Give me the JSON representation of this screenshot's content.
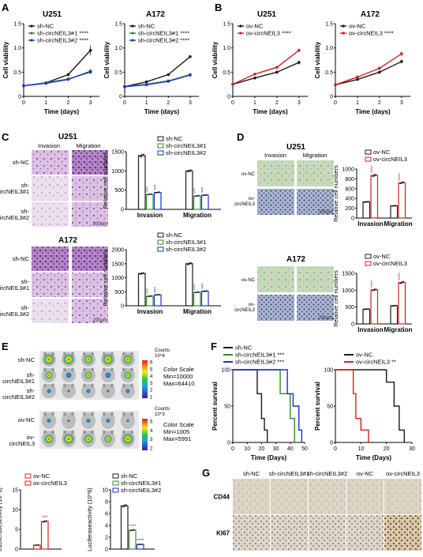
{
  "panels": {
    "A": {
      "letter": "A",
      "charts": [
        {
          "title": "U251",
          "ylabel": "Cell viability",
          "xlabel": "Time (days)",
          "legend": [
            "sh-NC",
            "sh-circNEIL3#1",
            "sh-circNEIL3#2"
          ],
          "stars": [
            "",
            "****",
            "****"
          ]
        },
        {
          "title": "A172",
          "ylabel": "Cell viability",
          "xlabel": "Time (days)",
          "legend": [
            "sh-NC",
            "sh-circNEIL3#1",
            "sh-circNEIL3#2"
          ],
          "stars": [
            "",
            "****",
            "****"
          ]
        }
      ]
    },
    "B": {
      "letter": "B",
      "charts": [
        {
          "title": "U251",
          "ylabel": "Cell viability",
          "xlabel": "Time (days)",
          "legend": [
            "ov-NC",
            "ov-circNEIL3"
          ],
          "stars": [
            "",
            "****"
          ]
        },
        {
          "title": "A172",
          "ylabel": "Cell viability",
          "xlabel": "Time (days)",
          "legend": [
            "ov-NC",
            "ov-circNEIL3"
          ],
          "stars": [
            "",
            "****"
          ]
        }
      ]
    },
    "C": {
      "letter": "C",
      "blocks": [
        {
          "title": "U251",
          "col_labels": [
            "Invasion",
            "Migration"
          ],
          "row_labels": [
            "sh-NC",
            "sh-\ncircNEIL3#1",
            "sh-\ncircNEIL3#2"
          ],
          "legend": [
            "sh-NC",
            "sh-circNEIL3#1",
            "sh-circNEIL3#2"
          ],
          "ylabel": "Relative cell numbers",
          "scale": "200μm"
        },
        {
          "title": "A172",
          "col_labels": [
            "Invasion",
            "Migration"
          ],
          "row_labels": [
            "sh-NC",
            "sh-\ncircNEIL3#1",
            "sh-\ncircNEIL3#2"
          ],
          "legend": [
            "sh-NC",
            "sh-circNEIL3#1",
            "sh-circNEIL3#2"
          ],
          "ylabel": "Relative cell numbers",
          "scale": "200μm"
        }
      ]
    },
    "D": {
      "letter": "D",
      "blocks": [
        {
          "title": "U251",
          "col_labels": [
            "Invasion",
            "Migration"
          ],
          "row_labels": [
            "ov-NC",
            "ov-\ncircNEIL3"
          ],
          "legend": [
            "ov-NC",
            "ov-circNEIL3"
          ],
          "ylabel": "Relative cell numbers",
          "scale": "200μm"
        },
        {
          "title": "A172",
          "col_labels": [
            "Invasion",
            "Migration"
          ],
          "row_labels": [
            "ov-NC",
            "ov-\ncircNEIL3"
          ],
          "legend": [
            "ov-NC",
            "ov-circNEIL3"
          ],
          "ylabel": "Relative cell numbers",
          "scale": "200μm"
        }
      ]
    },
    "E": {
      "letter": "E",
      "imaging": [
        {
          "row_labels": [
            "sh-NC",
            "sh-\ncircNEIL3#1",
            "sh-\ncircNEIL3#2"
          ],
          "counts_label": "Counts",
          "exp": "10^4",
          "ticks": [
            "6",
            "5",
            "4",
            "3",
            "2",
            "1"
          ],
          "scale_text": [
            "Color Scale",
            "Min=10000",
            "Max=64410"
          ]
        },
        {
          "row_labels": [
            "ov-NC",
            "ov-\ncircNEIL3"
          ],
          "counts_label": "Counts",
          "exp": "10^3",
          "ticks": [
            "5",
            "4",
            "3",
            "2"
          ],
          "scale_text": [
            "Color Scale",
            "Min=1005",
            "Max=5991"
          ]
        }
      ],
      "bars": [
        {
          "legend": [
            "ov-NC",
            "ov-circNEIL3"
          ],
          "ylabel": "Luciferaseactivity (10^6)"
        },
        {
          "legend": [
            "sh-NC",
            "sh-circNEIL3#1",
            "sh-circNEIL3#2"
          ],
          "ylabel": "Luciferaseactivity (10^6)"
        }
      ]
    },
    "F": {
      "letter": "F",
      "charts": [
        {
          "ylabel": "Percent survival",
          "xlabel": "Time (Days)",
          "legend": [
            "sh-NC",
            "sh-circNEIL3#1 ***",
            "sh-circNEIL3#2 ***"
          ]
        },
        {
          "ylabel": "Percent survival",
          "xlabel": "Time (Days)",
          "legend": [
            "ov-NC",
            "ov-circNEIL3 **"
          ]
        }
      ]
    },
    "G": {
      "letter": "G",
      "col_labels": [
        "sh-NC",
        "sh-circNEIL3#1",
        "sh-circNEIL3#2",
        "ov-NC",
        "ov-circNEIL3"
      ],
      "row_labels": [
        "CD44",
        "KI67"
      ]
    }
  },
  "colors": {
    "black": "#1a1a1a",
    "green": "#2e8b2e",
    "blue": "#1f2fc8",
    "red": "#d42020",
    "he_pink": "#d7b6dc",
    "he_purple": "#7b3f9a",
    "ihc_bg": "#d9cfc0",
    "ihc_brown": "#8a5a2b"
  },
  "chart_data": [
    {
      "id": "A-U251",
      "type": "line",
      "title": "U251",
      "xlabel": "Time (days)",
      "ylabel": "Cell viability",
      "x": [
        0,
        1,
        2,
        3
      ],
      "xlim": [
        0,
        3.4
      ],
      "ylim": [
        0,
        1.5
      ],
      "xticks": [
        0,
        1,
        2,
        3
      ],
      "yticks": [
        0,
        0.5,
        1.0,
        1.5
      ],
      "series": [
        {
          "name": "sh-NC",
          "color": "#1a1a1a",
          "values": [
            0.22,
            0.28,
            0.45,
            0.95
          ],
          "err": [
            0.01,
            0.02,
            0.03,
            0.1
          ]
        },
        {
          "name": "sh-circNEIL3#1",
          "color": "#2e8b2e",
          "values": [
            0.22,
            0.28,
            0.36,
            0.5
          ],
          "err": [
            0.01,
            0.02,
            0.02,
            0.04
          ]
        },
        {
          "name": "sh-circNEIL3#2",
          "color": "#1f2fc8",
          "values": [
            0.22,
            0.27,
            0.35,
            0.52
          ],
          "err": [
            0.01,
            0.02,
            0.02,
            0.04
          ]
        }
      ]
    },
    {
      "id": "A-A172",
      "type": "line",
      "title": "A172",
      "xlabel": "Time (days)",
      "ylabel": "Cell viability",
      "x": [
        0,
        1,
        2,
        3
      ],
      "xlim": [
        0,
        3.4
      ],
      "ylim": [
        0,
        1.5
      ],
      "xticks": [
        0,
        1,
        2,
        3
      ],
      "yticks": [
        0,
        0.5,
        1.0,
        1.5
      ],
      "series": [
        {
          "name": "sh-NC",
          "color": "#1a1a1a",
          "values": [
            0.2,
            0.3,
            0.45,
            0.82
          ],
          "err": [
            0.01,
            0.02,
            0.02,
            0.03
          ]
        },
        {
          "name": "sh-circNEIL3#1",
          "color": "#2e8b2e",
          "values": [
            0.2,
            0.25,
            0.32,
            0.45
          ],
          "err": [
            0.01,
            0.01,
            0.02,
            0.03
          ]
        },
        {
          "name": "sh-circNEIL3#2",
          "color": "#1f2fc8",
          "values": [
            0.2,
            0.24,
            0.31,
            0.44
          ],
          "err": [
            0.01,
            0.01,
            0.02,
            0.03
          ]
        }
      ]
    },
    {
      "id": "B-U251",
      "type": "line",
      "title": "U251",
      "xlabel": "Time (days)",
      "ylabel": "Cell viability",
      "x": [
        0,
        1,
        2,
        3
      ],
      "xlim": [
        0,
        3.4
      ],
      "ylim": [
        0,
        1.5
      ],
      "xticks": [
        0,
        1,
        2,
        3
      ],
      "yticks": [
        0,
        0.5,
        1.0,
        1.5
      ],
      "series": [
        {
          "name": "ov-NC",
          "color": "#1a1a1a",
          "values": [
            0.25,
            0.38,
            0.5,
            0.7
          ],
          "err": [
            0.01,
            0.02,
            0.02,
            0.04
          ]
        },
        {
          "name": "ov-circNEIL3",
          "color": "#d42020",
          "values": [
            0.25,
            0.46,
            0.6,
            0.95
          ],
          "err": [
            0.01,
            0.02,
            0.02,
            0.04
          ]
        }
      ]
    },
    {
      "id": "B-A172",
      "type": "line",
      "title": "A172",
      "xlabel": "Time (days)",
      "ylabel": "Cell viability",
      "x": [
        0,
        1,
        2,
        3
      ],
      "xlim": [
        0,
        3.4
      ],
      "ylim": [
        0,
        1.5
      ],
      "xticks": [
        0,
        1,
        2,
        3
      ],
      "yticks": [
        0,
        0.5,
        1.0,
        1.5
      ],
      "series": [
        {
          "name": "ov-NC",
          "color": "#1a1a1a",
          "values": [
            0.24,
            0.35,
            0.5,
            0.72
          ],
          "err": [
            0.01,
            0.02,
            0.02,
            0.04
          ]
        },
        {
          "name": "ov-circNEIL3",
          "color": "#d42020",
          "values": [
            0.24,
            0.4,
            0.58,
            0.88
          ],
          "err": [
            0.01,
            0.02,
            0.03,
            0.05
          ]
        }
      ]
    },
    {
      "id": "C-U251",
      "type": "bar",
      "categories": [
        "Invasion",
        "Migration"
      ],
      "ylabel": "Relative cell numbers",
      "ylim": [
        0,
        1500
      ],
      "yticks": [
        0,
        500,
        1000,
        1500
      ],
      "stars": [
        "",
        "***",
        "***"
      ],
      "series": [
        {
          "name": "sh-NC",
          "color": "#1a1a1a",
          "values": [
            1400,
            1000
          ]
        },
        {
          "name": "sh-circNEIL3#1",
          "color": "#2e8b2e",
          "values": [
            390,
            350
          ]
        },
        {
          "name": "sh-circNEIL3#2",
          "color": "#1f2fc8",
          "values": [
            440,
            370
          ]
        }
      ]
    },
    {
      "id": "C-A172",
      "type": "bar",
      "categories": [
        "Invasion",
        "Migration"
      ],
      "ylabel": "Relative cell numbers",
      "ylim": [
        0,
        2000
      ],
      "yticks": [
        0,
        500,
        1000,
        1500,
        2000
      ],
      "stars": [
        "",
        "***",
        "***"
      ],
      "series": [
        {
          "name": "sh-NC",
          "color": "#1a1a1a",
          "values": [
            1150,
            1500
          ]
        },
        {
          "name": "sh-circNEIL3#1",
          "color": "#2e8b2e",
          "values": [
            340,
            480
          ]
        },
        {
          "name": "sh-circNEIL3#2",
          "color": "#1f2fc8",
          "values": [
            390,
            520
          ]
        }
      ]
    },
    {
      "id": "D-U251",
      "type": "bar",
      "categories": [
        "Invasion",
        "Migration"
      ],
      "ylabel": "Relative cell numbers",
      "ylim": [
        0,
        1000
      ],
      "yticks": [
        0,
        200,
        400,
        600,
        800,
        1000
      ],
      "stars": [
        "",
        "****"
      ],
      "series": [
        {
          "name": "ov-NC",
          "color": "#1a1a1a",
          "values": [
            330,
            250
          ]
        },
        {
          "name": "ov-circNEIL3",
          "color": "#d42020",
          "values": [
            870,
            720
          ]
        }
      ]
    },
    {
      "id": "D-A172",
      "type": "bar",
      "categories": [
        "Invasion",
        "Migration"
      ],
      "ylabel": "Relative cell numbers",
      "ylim": [
        0,
        1500
      ],
      "yticks": [
        0,
        500,
        1000,
        1500
      ],
      "stars": [
        "",
        "****"
      ],
      "series": [
        {
          "name": "ov-NC",
          "color": "#1a1a1a",
          "values": [
            440,
            540
          ]
        },
        {
          "name": "ov-circNEIL3",
          "color": "#d42020",
          "values": [
            1010,
            1230
          ]
        }
      ]
    },
    {
      "id": "E-ov",
      "type": "bar",
      "categories": [
        ""
      ],
      "ylabel": "Luciferaseactivity (10^6)",
      "ylim": [
        0,
        15
      ],
      "yticks": [
        0,
        5,
        10,
        15
      ],
      "stars": [
        "",
        "***"
      ],
      "series": [
        {
          "name": "ov-NC",
          "color": "#d42020",
          "values": [
            1.0
          ]
        },
        {
          "name": "ov-circNEIL3",
          "color": "#d42020",
          "values": [
            7.0
          ]
        }
      ]
    },
    {
      "id": "E-sh",
      "type": "bar",
      "categories": [
        ""
      ],
      "ylabel": "Luciferaseactivity (10^6)",
      "ylim": [
        0,
        10
      ],
      "yticks": [
        0,
        2,
        4,
        6,
        8,
        10
      ],
      "stars": [
        "",
        "****",
        "****"
      ],
      "series": [
        {
          "name": "sh-NC",
          "color": "#1a1a1a",
          "values": [
            7.3
          ]
        },
        {
          "name": "sh-circNEIL3#1",
          "color": "#2e8b2e",
          "values": [
            3.2
          ]
        },
        {
          "name": "sh-circNEIL3#2",
          "color": "#1f2fc8",
          "values": [
            0.8
          ]
        }
      ]
    },
    {
      "id": "F-sh",
      "type": "line",
      "xlabel": "Time (Days)",
      "ylabel": "Percent survival",
      "xlim": [
        0,
        50
      ],
      "ylim": [
        0,
        100
      ],
      "xticks": [
        0,
        10,
        20,
        30,
        40,
        50
      ],
      "yticks": [
        0,
        50,
        100
      ],
      "series": [
        {
          "name": "sh-NC",
          "color": "#1a1a1a",
          "x": [
            0,
            17,
            17,
            20,
            20,
            22,
            22,
            24,
            24
          ],
          "values": [
            100,
            100,
            67,
            67,
            33,
            33,
            17,
            17,
            0
          ]
        },
        {
          "name": "sh-circNEIL3#1",
          "color": "#2e8b2e",
          "x": [
            0,
            33,
            33,
            40,
            40,
            43,
            43
          ],
          "values": [
            100,
            100,
            67,
            67,
            33,
            33,
            0
          ]
        },
        {
          "name": "sh-circNEIL3#2",
          "color": "#1f2fc8",
          "x": [
            0,
            38,
            38,
            42,
            42,
            46,
            46,
            48,
            48
          ],
          "values": [
            100,
            100,
            67,
            67,
            50,
            50,
            17,
            17,
            0
          ]
        }
      ]
    },
    {
      "id": "F-ov",
      "type": "line",
      "xlabel": "Time (Days)",
      "ylabel": "Percent survival",
      "xlim": [
        0,
        30
      ],
      "ylim": [
        0,
        100
      ],
      "xticks": [
        0,
        10,
        20,
        30
      ],
      "yticks": [
        0,
        50,
        100
      ],
      "series": [
        {
          "name": "ov-NC",
          "color": "#1a1a1a",
          "x": [
            0,
            20,
            20,
            23,
            23,
            25,
            25,
            27,
            27
          ],
          "values": [
            100,
            100,
            83,
            83,
            50,
            50,
            17,
            17,
            0
          ]
        },
        {
          "name": "ov-circNEIL3",
          "color": "#d42020",
          "x": [
            0,
            7,
            7,
            8,
            8,
            10,
            10,
            13,
            13
          ],
          "values": [
            100,
            100,
            67,
            67,
            33,
            33,
            17,
            17,
            0
          ]
        }
      ]
    }
  ]
}
